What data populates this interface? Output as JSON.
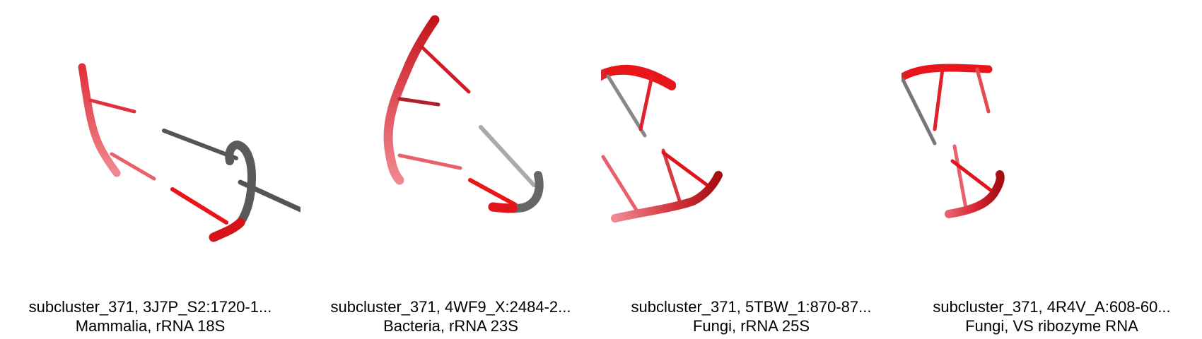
{
  "panels": [
    {
      "title": "subcluster_371, 3J7P_S2:1720-1...",
      "subtitle": "Mammalia, rRNA 18S"
    },
    {
      "title": "subcluster_371, 4WF9_X:2484-2...",
      "subtitle": "Bacteria, rRNA 23S"
    },
    {
      "title": "subcluster_371, 5TBW_1:870-87...",
      "subtitle": "Fungi, rRNA 25S"
    },
    {
      "title": "subcluster_371, 4R4V_A:608-60...",
      "subtitle": "Fungi, VS ribozyme RNA"
    }
  ],
  "colors": {
    "rna_red": "#e8151b",
    "rna_pink": "#f06a6e",
    "rna_dark": "#a50d12",
    "rna_gray": "#666666",
    "rna_light_gray": "#aaaaaa"
  }
}
